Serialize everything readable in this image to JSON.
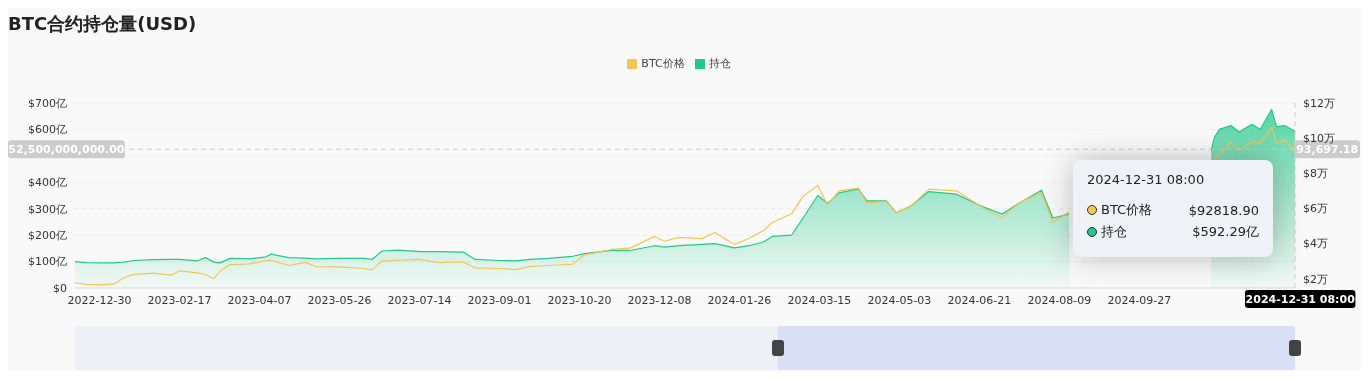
{
  "chart_data": {
    "type": "line",
    "title": "BTC合约持仓量(USD)",
    "x": [
      "2022-12-15",
      "2022-12-22",
      "2022-12-30",
      "2023-01-08",
      "2023-01-14",
      "2023-01-20",
      "2023-02-01",
      "2023-02-12",
      "2023-02-17",
      "2023-02-28",
      "2023-03-05",
      "2023-03-10",
      "2023-03-14",
      "2023-03-20",
      "2023-04-01",
      "2023-04-11",
      "2023-04-14",
      "2023-04-25",
      "2023-05-05",
      "2023-05-12",
      "2023-05-26",
      "2023-06-10",
      "2023-06-15",
      "2023-06-21",
      "2023-07-01",
      "2023-07-14",
      "2023-07-25",
      "2023-08-10",
      "2023-08-17",
      "2023-09-01",
      "2023-09-11",
      "2023-09-20",
      "2023-10-01",
      "2023-10-16",
      "2023-10-23",
      "2023-11-09",
      "2023-11-20",
      "2023-12-05",
      "2023-12-11",
      "2023-12-20",
      "2024-01-03",
      "2024-01-11",
      "2024-01-23",
      "2024-02-01",
      "2024-02-10",
      "2024-02-15",
      "2024-02-27",
      "2024-03-05",
      "2024-03-14",
      "2024-03-20",
      "2024-03-27",
      "2024-04-08",
      "2024-04-13",
      "2024-04-25",
      "2024-05-01",
      "2024-05-10",
      "2024-05-21",
      "2024-06-07",
      "2024-06-24",
      "2024-07-05",
      "2024-07-15",
      "2024-07-29",
      "2024-08-05",
      "2024-08-15",
      "2024-09-27",
      "2024-11-10",
      "2024-11-12",
      "2024-11-15",
      "2024-11-22",
      "2024-11-27",
      "2024-12-05",
      "2024-12-10",
      "2024-12-17",
      "2024-12-20",
      "2024-12-25",
      "2024-12-31T08:00"
    ],
    "series": [
      {
        "name": "BTC价格",
        "axis": "y2",
        "color": "#f5c451",
        "values": [
          1.77,
          1.68,
          1.65,
          1.7,
          2.05,
          2.25,
          2.32,
          2.2,
          2.45,
          2.33,
          2.24,
          2.0,
          2.45,
          2.8,
          2.84,
          3.03,
          3.05,
          2.75,
          2.93,
          2.68,
          2.67,
          2.58,
          2.5,
          3.0,
          3.05,
          3.1,
          2.92,
          2.95,
          2.62,
          2.58,
          2.52,
          2.7,
          2.75,
          2.83,
          3.35,
          3.67,
          3.74,
          4.4,
          4.13,
          4.35,
          4.28,
          4.63,
          3.95,
          4.3,
          4.75,
          5.2,
          5.7,
          6.7,
          7.3,
          6.2,
          7.0,
          7.16,
          6.3,
          6.4,
          5.75,
          6.1,
          7.1,
          7.0,
          6.0,
          5.45,
          6.3,
          6.9,
          5.2,
          5.8,
          null,
          null,
          8.8,
          9.0,
          9.8,
          9.3,
          9.8,
          9.7,
          10.6,
          9.7,
          9.9,
          9.28
        ]
      },
      {
        "name": "持仓",
        "type": "area",
        "color": "#22c98a",
        "values": [
          100,
          96,
          95,
          95,
          98,
          104,
          107,
          108,
          108,
          103,
          115,
          98,
          95,
          112,
          110,
          118,
          128,
          115,
          113,
          110,
          112,
          112,
          108,
          140,
          143,
          138,
          138,
          136,
          108,
          104,
          103,
          108,
          112,
          120,
          130,
          142,
          142,
          160,
          155,
          160,
          165,
          168,
          152,
          160,
          175,
          195,
          200,
          265,
          350,
          320,
          360,
          375,
          330,
          330,
          285,
          310,
          365,
          355,
          305,
          280,
          320,
          370,
          265,
          280,
          null,
          520,
          570,
          600,
          615,
          590,
          620,
          600,
          675,
          610,
          615,
          592
        ]
      }
    ],
    "xlim": [
      "2022-12-15",
      "2024-12-31T08:00"
    ],
    "xticks": [
      {
        "value": "2022-12-30",
        "label": "2022-12-30"
      },
      {
        "value": "2023-02-17",
        "label": "2023-02-17"
      },
      {
        "value": "2023-04-07",
        "label": "2023-04-07"
      },
      {
        "value": "2023-05-26",
        "label": "2023-05-26"
      },
      {
        "value": "2023-07-14",
        "label": "2023-07-14"
      },
      {
        "value": "2023-09-01",
        "label": "2023-09-01"
      },
      {
        "value": "2023-10-20",
        "label": "2023-10-20"
      },
      {
        "value": "2023-12-08",
        "label": "2023-12-08"
      },
      {
        "value": "2024-01-26",
        "label": "2024-01-26"
      },
      {
        "value": "2024-03-15",
        "label": "2024-03-15"
      },
      {
        "value": "2024-05-03",
        "label": "2024-05-03"
      },
      {
        "value": "2024-06-21",
        "label": "2024-06-21"
      },
      {
        "value": "2024-08-09",
        "label": "2024-08-09"
      },
      {
        "value": "2024-09-27",
        "label": "2024-09-27"
      }
    ],
    "ylim": [
      0,
      700
    ],
    "yticks": [
      {
        "value": 0,
        "label": "$0"
      },
      {
        "value": 100,
        "label": "$100亿"
      },
      {
        "value": 200,
        "label": "$200亿"
      },
      {
        "value": 300,
        "label": "$300亿"
      },
      {
        "value": 400,
        "label": "$400亿"
      },
      {
        "value": 500,
        "label": null
      },
      {
        "value": 600,
        "label": "$600亿"
      },
      {
        "value": 700,
        "label": "$700亿"
      }
    ],
    "y2lim": [
      1.47,
      12
    ],
    "y2ticks": [
      {
        "value": 2,
        "label": "$2万"
      },
      {
        "value": 4,
        "label": "$4万"
      },
      {
        "value": 6,
        "label": "$6万"
      },
      {
        "value": 8,
        "label": "$8万"
      },
      {
        "value": 10,
        "label": "$10万"
      },
      {
        "value": 12,
        "label": "$12万"
      }
    ],
    "ref_lines": [
      {
        "axis": "y",
        "value": 525,
        "line_style": "dashed",
        "color": "#cccccc"
      },
      {
        "axis": "x",
        "value": "2024-12-31T08:00",
        "line_style": "dashed",
        "color": "#cccccc"
      }
    ],
    "annotations": [
      "2024-12-31 08:00",
      "BTC价格",
      "$92818.90",
      "持仓",
      "$592.29亿",
      "52,500,000,000.00",
      "93,697.18",
      "2024-12-31 08:00"
    ],
    "grid": "y",
    "legend": "top",
    "marker": "none",
    "line_style": "solid"
  }
}
